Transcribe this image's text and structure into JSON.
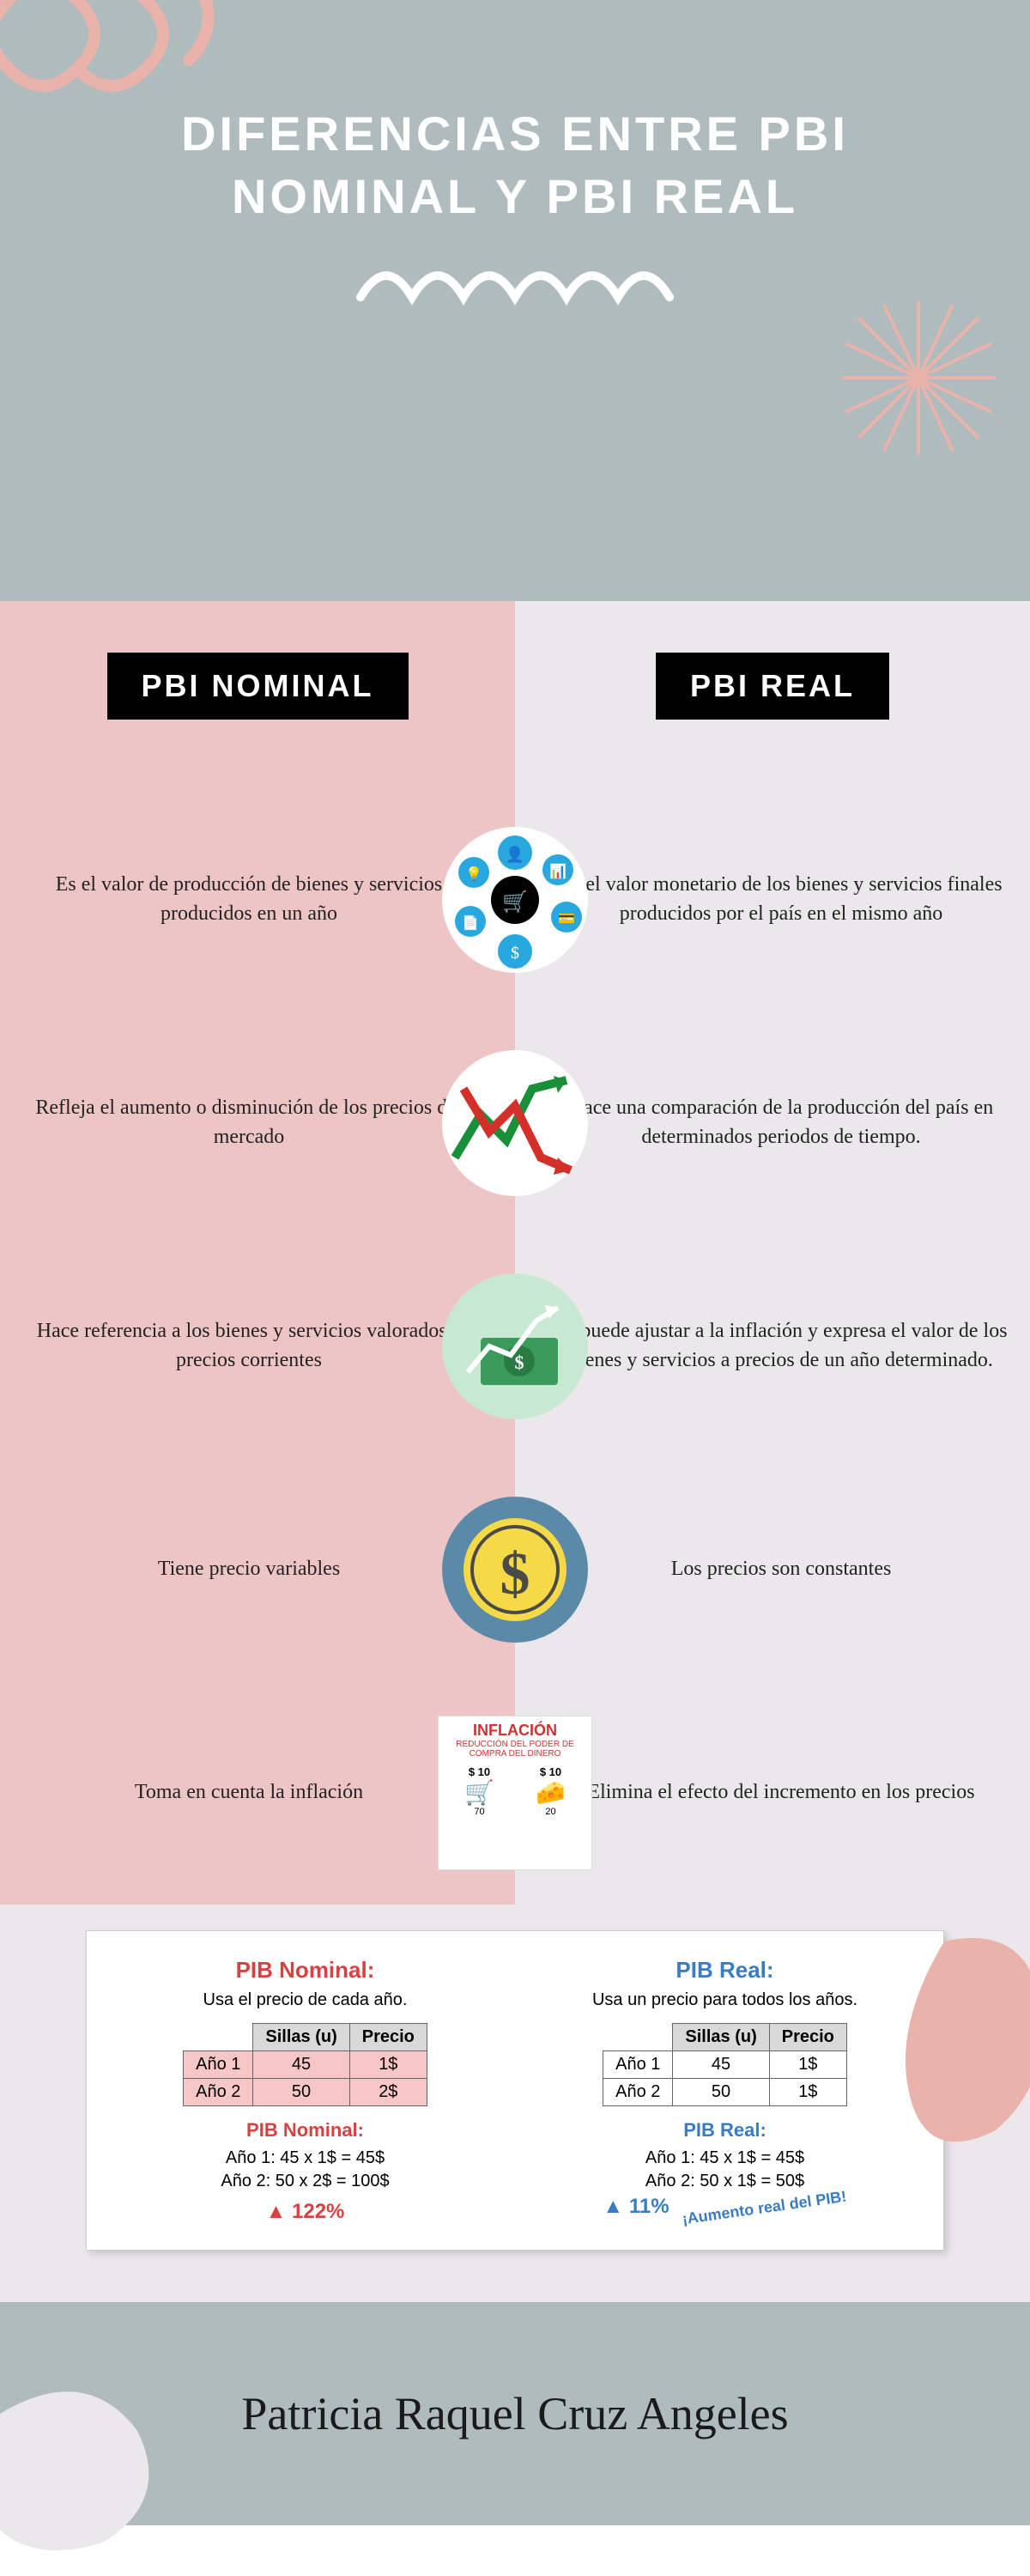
{
  "colors": {
    "header_bg": "#b0bbbd",
    "left_bg": "#eec5c5",
    "right_bg": "#eae8ea",
    "badge_bg": "#000000",
    "badge_text": "#ffffff",
    "title_text": "#ffffff",
    "spiral": "#e9b2aa",
    "starburst": "#e9b2aa",
    "wave": "#ffffff",
    "nominal_accent": "#d94141",
    "real_accent": "#3a7cc4",
    "table_row_pink": "#f7c6c6",
    "table_header_gray": "#d9d9d9"
  },
  "header": {
    "title_line1": "DIFERENCIAS ENTRE PBI",
    "title_line2": "NOMINAL Y PBI REAL"
  },
  "columns": {
    "left_badge": "PBI NOMINAL",
    "right_badge": "PBI REAL"
  },
  "rows": [
    {
      "left": "Es el valor de producción de bienes y servicios producidos en un año",
      "right": "Es el valor monetario de los bienes y servicios finales producidos por el país en el mismo año",
      "icon": "economy-icons"
    },
    {
      "left": "Refleja el aumento o disminución de los precios del mercado",
      "right": "Hace una comparación de la producción del país en determinados periodos de tiempo.",
      "icon": "arrows-up-down"
    },
    {
      "left": "Hace referencia a los bienes y servicios valorados a precios corrientes",
      "right": "Se puede ajustar a la inflación y expresa el valor de los bienes y servicios a precios de un año determinado.",
      "icon": "money-growth"
    },
    {
      "left": "Tiene precio variables",
      "right": "Los precios son constantes",
      "icon": "dollar-coin"
    },
    {
      "left": "Toma en cuenta la inflación",
      "right": "Elimina el efecto del incremento en los precios",
      "icon": "inflation-box"
    }
  ],
  "inflation_box": {
    "title": "INFLACIÓN",
    "subtitle": "REDUCCIÓN DEL PODER DE COMPRA DEL DINERO",
    "price": "$ 10",
    "year_left": "70",
    "year_right": "20"
  },
  "tables": {
    "nominal": {
      "title": "PIB Nominal:",
      "subtitle": "Usa el precio de cada año.",
      "headers": [
        "",
        "Sillas (u)",
        "Precio"
      ],
      "rows": [
        [
          "Año 1",
          "45",
          "1$"
        ],
        [
          "Año 2",
          "50",
          "2$"
        ]
      ],
      "calc_title": "PIB Nominal:",
      "calc1": "Año 1: 45 x 1$ = 45$",
      "calc2": "Año 2: 50 x 2$ = 100$",
      "pct": "▲ 122%",
      "pct_color": "#d94141"
    },
    "real": {
      "title": "PIB Real:",
      "subtitle": "Usa un precio para todos los años.",
      "headers": [
        "",
        "Sillas (u)",
        "Precio"
      ],
      "rows": [
        [
          "Año 1",
          "45",
          "1$"
        ],
        [
          "Año 2",
          "50",
          "1$"
        ]
      ],
      "calc_title": "PIB Real:",
      "calc1": "Año 1: 45 x 1$ = 45$",
      "calc2": "Año 2: 50 x 1$ = 50$",
      "pct": "▲ 11%",
      "pct_color": "#3a7cc4",
      "stamp": "¡Aumento real del PIB!"
    }
  },
  "footer": {
    "signature": "Patricia Raquel Cruz Angeles"
  }
}
